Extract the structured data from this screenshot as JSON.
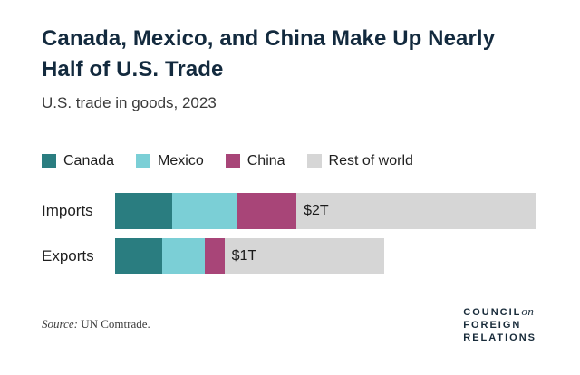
{
  "title": {
    "line1": "Canada, Mexico, and China Make Up Nearly",
    "line2": "Half of U.S. Trade"
  },
  "subtitle": "U.S. trade in goods, 2023",
  "source": {
    "label": "Source:",
    "text": "UN Comtrade."
  },
  "logo": {
    "word1": "COUNCIL",
    "word1_suffix": "on",
    "word2": "FOREIGN",
    "word3": "RELATIONS"
  },
  "chart_data": {
    "type": "bar",
    "orientation": "horizontal",
    "stacked": true,
    "title": "Canada, Mexico, and China Make Up Nearly Half of U.S. Trade",
    "subtitle": "U.S. trade in goods, 2023",
    "unit": "trillions of U.S. dollars",
    "categories": [
      "Imports",
      "Exports"
    ],
    "series": [
      {
        "name": "Canada",
        "color": "#2a7d80",
        "values": [
          0.43,
          0.35
        ]
      },
      {
        "name": "Mexico",
        "color": "#7bcfd6",
        "values": [
          0.48,
          0.32
        ]
      },
      {
        "name": "China",
        "color": "#a84578",
        "values": [
          0.45,
          0.15
        ]
      },
      {
        "name": "Rest of world",
        "color": "#d6d6d6",
        "values": [
          1.8,
          1.2
        ]
      }
    ],
    "bar_labels": [
      "$2T",
      "$1T"
    ],
    "legend_position": "top",
    "axis": "none",
    "grid": false
  }
}
